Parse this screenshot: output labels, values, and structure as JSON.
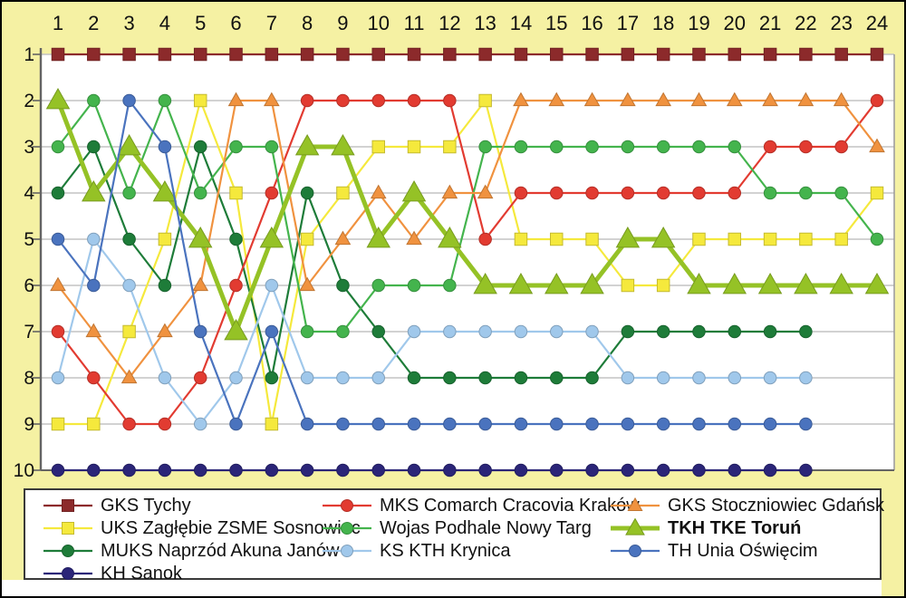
{
  "chart_data": {
    "type": "line",
    "title": "",
    "x_ticks": [
      "1",
      "2",
      "3",
      "4",
      "5",
      "6",
      "7",
      "8",
      "9",
      "10",
      "11",
      "12",
      "13",
      "14",
      "15",
      "16",
      "17",
      "18",
      "19",
      "20",
      "21",
      "22",
      "23",
      "24"
    ],
    "y_ticks": [
      "1",
      "2",
      "3",
      "4",
      "5",
      "6",
      "7",
      "8",
      "9",
      "10"
    ],
    "x_range": [
      1,
      24
    ],
    "y_range": [
      1,
      10
    ],
    "y_axis_inverted": true,
    "grid": "horizontal",
    "legend_position": "bottom",
    "series": [
      {
        "id": "gks-tychy",
        "name": "GKS Tychy",
        "color": "#8C2A2B",
        "marker": "square",
        "bold": false,
        "values": [
          1,
          1,
          1,
          1,
          1,
          1,
          1,
          1,
          1,
          1,
          1,
          1,
          1,
          1,
          1,
          1,
          1,
          1,
          1,
          1,
          1,
          1,
          1,
          1
        ]
      },
      {
        "id": "uks-zaglebie",
        "name": "UKS Zagłębie ZSME Sosnowiec",
        "color": "#F5E93C",
        "marker": "square",
        "bold": false,
        "values": [
          9,
          9,
          7,
          5,
          2,
          4,
          9,
          5,
          4,
          3,
          3,
          3,
          2,
          5,
          5,
          5,
          6,
          6,
          5,
          5,
          5,
          5,
          5,
          4
        ]
      },
      {
        "id": "muks-naprzod",
        "name": "MUKS Naprzód Akuna Janów",
        "color": "#1E7C39",
        "marker": "circle",
        "bold": false,
        "values": [
          4,
          3,
          5,
          6,
          3,
          5,
          8,
          4,
          6,
          7,
          8,
          8,
          8,
          8,
          8,
          8,
          7,
          7,
          7,
          7,
          7,
          7
        ]
      },
      {
        "id": "kh-sanok",
        "name": "KH Sanok",
        "color": "#2B2578",
        "marker": "circle",
        "bold": false,
        "values": [
          10,
          10,
          10,
          10,
          10,
          10,
          10,
          10,
          10,
          10,
          10,
          10,
          10,
          10,
          10,
          10,
          10,
          10,
          10,
          10,
          10,
          10
        ]
      },
      {
        "id": "mks-cracovia",
        "name": "MKS Comarch Cracovia Kraków",
        "color": "#E23B31",
        "marker": "circle",
        "bold": false,
        "values": [
          7,
          8,
          9,
          9,
          8,
          6,
          4,
          2,
          2,
          2,
          2,
          2,
          5,
          4,
          4,
          4,
          4,
          4,
          4,
          4,
          3,
          3,
          3,
          2
        ]
      },
      {
        "id": "wojas-podhale",
        "name": "Wojas Podhale Nowy Targ",
        "color": "#44B44D",
        "marker": "circle",
        "bold": false,
        "values": [
          3,
          2,
          4,
          2,
          4,
          3,
          3,
          7,
          7,
          6,
          6,
          6,
          3,
          3,
          3,
          3,
          3,
          3,
          3,
          3,
          4,
          4,
          4,
          5
        ]
      },
      {
        "id": "ks-kth-krynica",
        "name": "KS KTH Krynica",
        "color": "#A0C8EB",
        "marker": "circle",
        "bold": false,
        "values": [
          8,
          5,
          6,
          8,
          9,
          8,
          6,
          8,
          8,
          8,
          7,
          7,
          7,
          7,
          7,
          7,
          8,
          8,
          8,
          8,
          8,
          8
        ]
      },
      {
        "id": "gks-stoczniowiec",
        "name": "GKS Stoczniowiec Gdańsk",
        "color": "#F0923F",
        "marker": "triangle",
        "bold": false,
        "values": [
          6,
          7,
          8,
          7,
          6,
          2,
          2,
          6,
          5,
          4,
          5,
          4,
          4,
          2,
          2,
          2,
          2,
          2,
          2,
          2,
          2,
          2,
          2,
          3
        ]
      },
      {
        "id": "tkh-torun",
        "name": "TKH TKE Toruń",
        "color": "#95C226",
        "marker": "triangle",
        "bold": true,
        "values": [
          2,
          4,
          3,
          4,
          5,
          7,
          5,
          3,
          3,
          5,
          4,
          5,
          6,
          6,
          6,
          6,
          5,
          5,
          6,
          6,
          6,
          6,
          6,
          6
        ]
      },
      {
        "id": "th-unia",
        "name": "TH Unia Oświęcim",
        "color": "#4A73BE",
        "marker": "circle",
        "bold": false,
        "values": [
          5,
          6,
          2,
          3,
          7,
          9,
          7,
          9,
          9,
          9,
          9,
          9,
          9,
          9,
          9,
          9,
          9,
          9,
          9,
          9,
          9,
          9
        ]
      }
    ]
  },
  "colors": {
    "background": "#F5F1A3",
    "plot_background": "#FFFFFF",
    "gridline": "#C4C4C4",
    "axis": "#646464",
    "plot_border": "#9E9E9E",
    "tick_label": "#111111",
    "legend_border": "#3A3A3A"
  }
}
